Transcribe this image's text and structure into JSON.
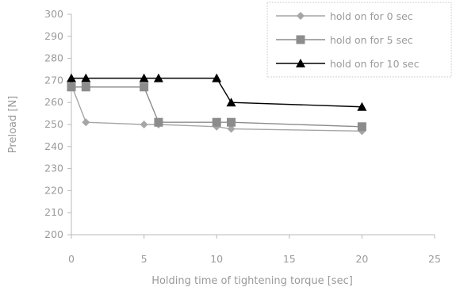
{
  "chart_data": {
    "type": "line",
    "title": "",
    "xlabel": "Holding time of tightening torque [sec]",
    "ylabel": "Preload [N]",
    "xlim": [
      0,
      25
    ],
    "ylim": [
      200,
      300
    ],
    "x_ticks": [
      0,
      5,
      10,
      15,
      20,
      25
    ],
    "y_ticks": [
      200,
      210,
      220,
      230,
      240,
      250,
      260,
      270,
      280,
      290,
      300
    ],
    "x_tick_labels": [
      "0",
      "5",
      "10",
      "15",
      "20",
      "25"
    ],
    "y_tick_labels": [
      "200",
      "210",
      "220",
      "230",
      "240",
      "250",
      "260",
      "270",
      "280",
      "290",
      "300"
    ],
    "grid": false,
    "legend_position": "top-right",
    "series": [
      {
        "name": "hold on for 0 sec",
        "marker": "diamond",
        "color": "#a6a6a6",
        "x": [
          0,
          1,
          5,
          6,
          10,
          11,
          20
        ],
        "y": [
          268,
          251,
          250,
          250,
          249,
          248,
          247
        ]
      },
      {
        "name": "hold on for 5 sec",
        "marker": "square",
        "color": "#8c8c8c",
        "x": [
          0,
          1,
          5,
          6,
          10,
          11,
          20
        ],
        "y": [
          267,
          267,
          267,
          251,
          251,
          251,
          249
        ]
      },
      {
        "name": "hold on for 10 sec",
        "marker": "triangle",
        "color": "#000000",
        "x": [
          0,
          1,
          5,
          6,
          10,
          11,
          20
        ],
        "y": [
          271,
          271,
          271,
          271,
          271,
          260,
          258
        ]
      }
    ]
  }
}
